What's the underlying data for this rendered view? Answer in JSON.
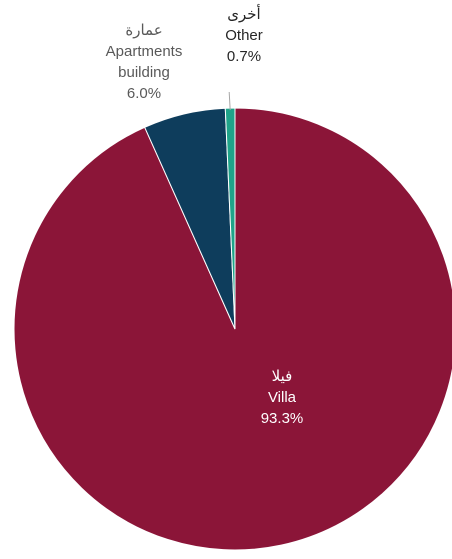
{
  "chart_data": {
    "type": "pie",
    "start_angle_deg": 0,
    "direction": "clockwise",
    "slices": [
      {
        "label_ar": "فيلا",
        "label_en": "Villa",
        "value": 93.3,
        "value_label": "93.3%",
        "color": "#8B1538"
      },
      {
        "label_ar": "عمارة",
        "label_en": "Apartments building",
        "label_en_line1": "Apartments",
        "label_en_line2": "building",
        "value": 6.0,
        "value_label": "6.0%",
        "color": "#0E3D5C"
      },
      {
        "label_ar": "أخرى",
        "label_en": "Other",
        "value": 0.7,
        "value_label": "0.7%",
        "color": "#1FA389"
      }
    ]
  }
}
